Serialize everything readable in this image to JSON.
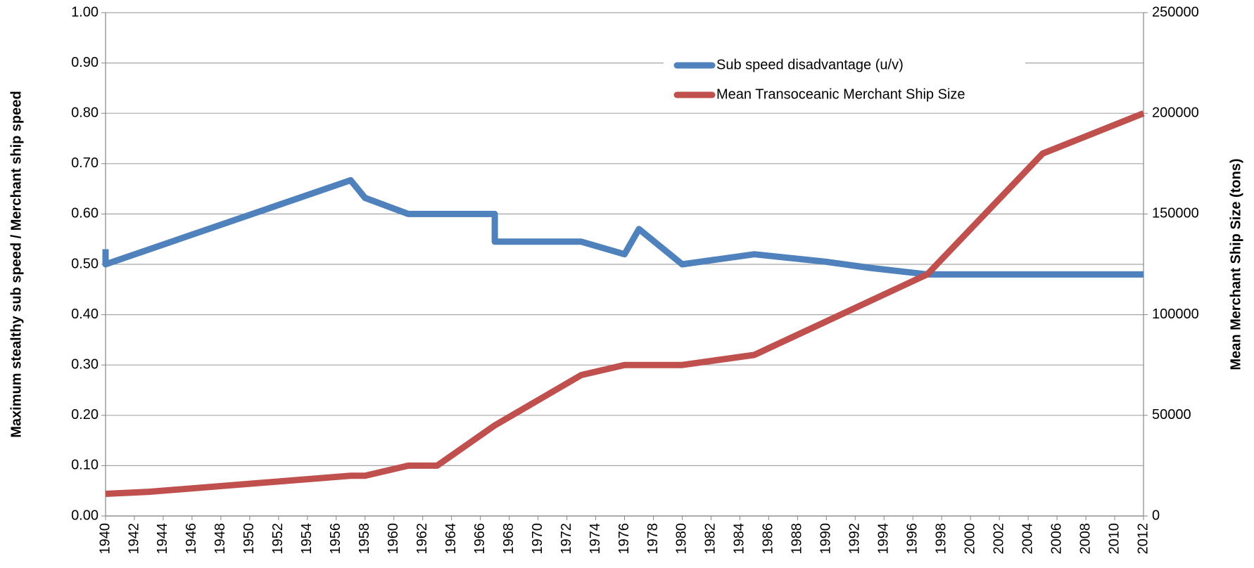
{
  "chart_data": {
    "type": "line",
    "ylabel": "Maximum stealthy sub speed / Merchant ship speed",
    "y2label": "Mean Merchant Ship Size (tons)",
    "xlim": [
      1940,
      2012
    ],
    "xticks": [
      1940,
      1942,
      1944,
      1946,
      1948,
      1950,
      1952,
      1954,
      1956,
      1958,
      1960,
      1962,
      1964,
      1966,
      1968,
      1970,
      1972,
      1974,
      1976,
      1978,
      1980,
      1982,
      1984,
      1986,
      1988,
      1990,
      1992,
      1994,
      1996,
      1998,
      2000,
      2002,
      2004,
      2006,
      2008,
      2010,
      2012
    ],
    "ylim": [
      0,
      1
    ],
    "yticks": [
      {
        "value": 0,
        "label": "0.00"
      },
      {
        "value": 0.1,
        "label": "0.10"
      },
      {
        "value": 0.2,
        "label": "0.20"
      },
      {
        "value": 0.3,
        "label": "0.30"
      },
      {
        "value": 0.4,
        "label": "0.40"
      },
      {
        "value": 0.5,
        "label": "0.50"
      },
      {
        "value": 0.6,
        "label": "0.60"
      },
      {
        "value": 0.7,
        "label": "0.70"
      },
      {
        "value": 0.8,
        "label": "0.80"
      },
      {
        "value": 0.9,
        "label": "0.90"
      },
      {
        "value": 1,
        "label": "1.00"
      }
    ],
    "y2lim": [
      0,
      250000
    ],
    "y2ticks": [
      0,
      50000,
      100000,
      150000,
      200000,
      250000
    ],
    "grid": true,
    "legend": "top-right",
    "series": [
      {
        "name": "Sub speed disadvantage (u/v)",
        "color": "#4f81bd",
        "x": [
          1940,
          1940,
          1957,
          1958,
          1961,
          1967,
          1967,
          1973,
          1976,
          1977,
          1980,
          1985,
          1990,
          1993,
          1997,
          2012
        ],
        "values": [
          0.53,
          0.5,
          0.667,
          0.632,
          0.6,
          0.6,
          0.545,
          0.545,
          0.52,
          0.57,
          0.5,
          0.52,
          0.505,
          0.493,
          0.48,
          0.48
        ]
      },
      {
        "name": "Mean Transoceanic Merchant Ship Size",
        "color": "#c0504d",
        "axis": "y2",
        "x": [
          1940,
          1943,
          1957,
          1958,
          1961,
          1963,
          1967,
          1973,
          1976,
          1980,
          1985,
          1997,
          2005,
          2012
        ],
        "values": [
          11000,
          12000,
          20000,
          20000,
          25000,
          25000,
          45000,
          70000,
          75000,
          75000,
          80000,
          120000,
          180000,
          200000
        ]
      }
    ]
  }
}
